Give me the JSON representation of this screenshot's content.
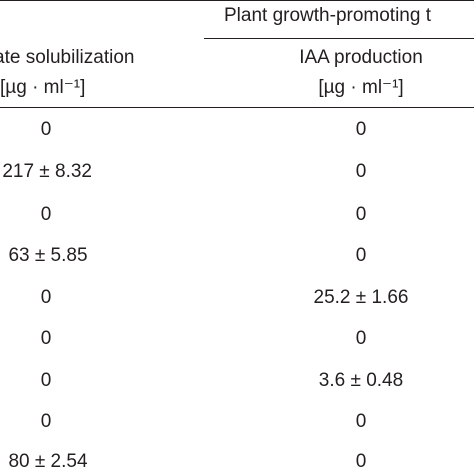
{
  "table": {
    "group_header": "Plant growth-promoting t",
    "columns": [
      {
        "title": "ate solubilization",
        "unit": "[µg · ml⁻¹]"
      },
      {
        "title": "IAA production",
        "unit": "[µg · ml⁻¹]"
      }
    ],
    "rows": [
      {
        "col1": "0",
        "col2": "0"
      },
      {
        "col1": "217 ± 8.32",
        "col2": "0"
      },
      {
        "col1": "0",
        "col2": "0"
      },
      {
        "col1": "63 ± 5.85",
        "col2": "0"
      },
      {
        "col1": "0",
        "col2": "25.2 ± 1.66"
      },
      {
        "col1": "0",
        "col2": "0"
      },
      {
        "col1": "0",
        "col2": "3.6 ± 0.48"
      },
      {
        "col1": "0",
        "col2": "0"
      },
      {
        "col1": "80 ± 2.54",
        "col2": "0"
      }
    ]
  }
}
